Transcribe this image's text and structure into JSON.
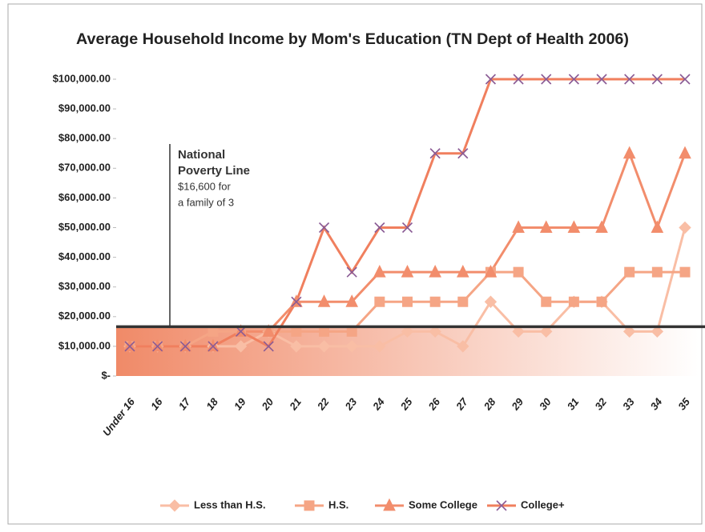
{
  "chart_data": {
    "type": "line",
    "title": "Average Household Income by Mom's Education (TN Dept of Health 2006)",
    "categories": [
      "Under 16",
      "16",
      "17",
      "18",
      "19",
      "20",
      "21",
      "22",
      "23",
      "24",
      "25",
      "26",
      "27",
      "28",
      "29",
      "30",
      "31",
      "32",
      "33",
      "34",
      "35"
    ],
    "series": [
      {
        "name": "Less than H.S.",
        "color": "#f9bea5",
        "marker": "diamond",
        "values": [
          10000,
          10000,
          10000,
          10000,
          10000,
          15000,
          10000,
          10000,
          10000,
          10000,
          15000,
          15000,
          10000,
          25000,
          15000,
          15000,
          25000,
          25000,
          15000,
          15000,
          50000
        ]
      },
      {
        "name": "H.S.",
        "color": "#f5a585",
        "marker": "square",
        "values": [
          10000,
          10000,
          10000,
          15000,
          15000,
          15000,
          15000,
          15000,
          15000,
          25000,
          25000,
          25000,
          25000,
          35000,
          35000,
          25000,
          25000,
          25000,
          35000,
          35000,
          35000
        ]
      },
      {
        "name": "Some College",
        "color": "#f28d6c",
        "marker": "triangle",
        "values": [
          10000,
          10000,
          10000,
          10000,
          15000,
          15000,
          25000,
          25000,
          25000,
          35000,
          35000,
          35000,
          35000,
          35000,
          50000,
          50000,
          50000,
          50000,
          75000,
          50000,
          75000
        ]
      },
      {
        "name": "College+",
        "color": "#f07f5e",
        "marker": "x",
        "values": [
          10000,
          10000,
          10000,
          10000,
          15000,
          10000,
          25000,
          50000,
          35000,
          50000,
          50000,
          75000,
          75000,
          100000,
          100000,
          100000,
          100000,
          100000,
          100000,
          100000,
          100000
        ]
      }
    ],
    "ylim": [
      0,
      100000
    ],
    "yticks": [
      {
        "value": 0,
        "label": "$-"
      },
      {
        "value": 10000,
        "label": "$10,000.00"
      },
      {
        "value": 20000,
        "label": "$20,000.00"
      },
      {
        "value": 30000,
        "label": "$30,000.00"
      },
      {
        "value": 40000,
        "label": "$40,000.00"
      },
      {
        "value": 50000,
        "label": "$50,000.00"
      },
      {
        "value": 60000,
        "label": "$60,000.00"
      },
      {
        "value": 70000,
        "label": "$70,000.00"
      },
      {
        "value": 80000,
        "label": "$80,000.00"
      },
      {
        "value": 90000,
        "label": "$90,000.00"
      },
      {
        "value": 100000,
        "label": "$100,000.00"
      }
    ],
    "poverty_line": 16600,
    "annotation": [
      "National",
      "Poverty Line",
      "$16,600 for",
      "a family of 3"
    ],
    "legend": "bottom"
  }
}
